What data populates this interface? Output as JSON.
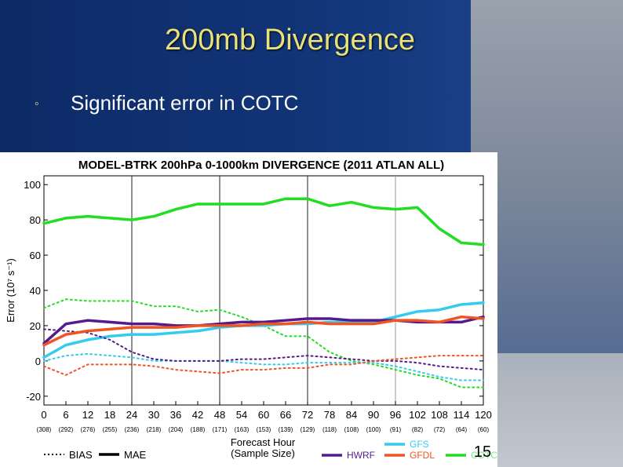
{
  "slide": {
    "title": "200mb Divergence",
    "bullet_mark": "◦",
    "bullet_text": "Significant error in COTC",
    "page_number": "15"
  },
  "chart_data": {
    "type": "line",
    "title": "MODEL-BTRK 200hPa 0-1000km DIVERGENCE (2011 ATLAN ALL)",
    "xlabel": "Forecast Hour",
    "xlabel2": "(Sample Size)",
    "ylabel": "Error (10⁷ s⁻¹)",
    "x": [
      0,
      6,
      12,
      18,
      24,
      30,
      36,
      42,
      48,
      54,
      60,
      66,
      72,
      78,
      84,
      90,
      96,
      102,
      108,
      114,
      120
    ],
    "sample_sizes": [
      "(308)",
      "(292)",
      "(276)",
      "(255)",
      "(236)",
      "(218)",
      "(204)",
      "(188)",
      "(171)",
      "(163)",
      "(153)",
      "(139)",
      "(129)",
      "(118)",
      "(108)",
      "(100)",
      "(91)",
      "(82)",
      "(72)",
      "(64)",
      "(60)"
    ],
    "ylim": [
      -25,
      105
    ],
    "yticks": [
      100,
      80,
      60,
      40,
      20,
      0,
      -20
    ],
    "vlines": [
      24,
      48,
      72,
      96
    ],
    "legend_style": [
      "BIAS",
      "MAE"
    ],
    "series": [
      {
        "name": "COTC",
        "color": "#22dd22",
        "style": "solid",
        "values": [
          78,
          81,
          82,
          81,
          80,
          82,
          86,
          89,
          89,
          89,
          89,
          92,
          92,
          88,
          90,
          87,
          86,
          87,
          75,
          67,
          66
        ]
      },
      {
        "name": "COTC",
        "color": "#22dd22",
        "style": "dotted",
        "values": [
          30,
          35,
          34,
          34,
          34,
          31,
          31,
          28,
          29,
          25,
          20,
          14,
          14,
          5,
          0,
          -2,
          -5,
          -8,
          -10,
          -15,
          -15
        ]
      },
      {
        "name": "GFS",
        "color": "#33ccee",
        "style": "solid",
        "values": [
          2,
          9,
          12,
          14,
          15,
          15,
          16,
          17,
          19,
          20,
          20,
          21,
          21,
          22,
          22,
          22,
          25,
          28,
          29,
          32,
          33
        ]
      },
      {
        "name": "GFS",
        "color": "#33ccee",
        "style": "dotted",
        "values": [
          0,
          3,
          4,
          3,
          2,
          0,
          0,
          0,
          0,
          -1,
          -2,
          -2,
          -1,
          -1,
          -1,
          -1,
          -3,
          -6,
          -9,
          -11,
          -11
        ]
      },
      {
        "name": "HWRF",
        "color": "#551a8b",
        "style": "solid",
        "values": [
          10,
          21,
          23,
          22,
          21,
          21,
          20,
          20,
          21,
          22,
          22,
          23,
          24,
          24,
          23,
          23,
          23,
          22,
          22,
          22,
          25
        ]
      },
      {
        "name": "HWRF",
        "color": "#551a8b",
        "style": "dotted",
        "values": [
          18,
          17,
          16,
          12,
          5,
          1,
          0,
          0,
          0,
          1,
          1,
          2,
          3,
          2,
          1,
          0,
          0,
          -1,
          -3,
          -4,
          -5
        ]
      },
      {
        "name": "GFDL",
        "color": "#ee5522",
        "style": "solid",
        "values": [
          9,
          15,
          17,
          18,
          19,
          19,
          19,
          20,
          20,
          20,
          21,
          21,
          22,
          21,
          21,
          21,
          23,
          23,
          22,
          25,
          24
        ]
      },
      {
        "name": "GFDL",
        "color": "#ee5522",
        "style": "dotted",
        "values": [
          -3,
          -8,
          -2,
          -2,
          -2,
          -3,
          -5,
          -6,
          -7,
          -5,
          -5,
          -4,
          -4,
          -2,
          -2,
          0,
          1,
          2,
          3,
          3,
          3
        ]
      }
    ],
    "legend": [
      {
        "label": "HWRF",
        "color": "#551a8b"
      },
      {
        "label": "GFS",
        "color": "#33ccee"
      },
      {
        "label": "GFDL",
        "color": "#ee5522"
      },
      {
        "label": "COTC",
        "color": "#22dd22"
      }
    ]
  }
}
